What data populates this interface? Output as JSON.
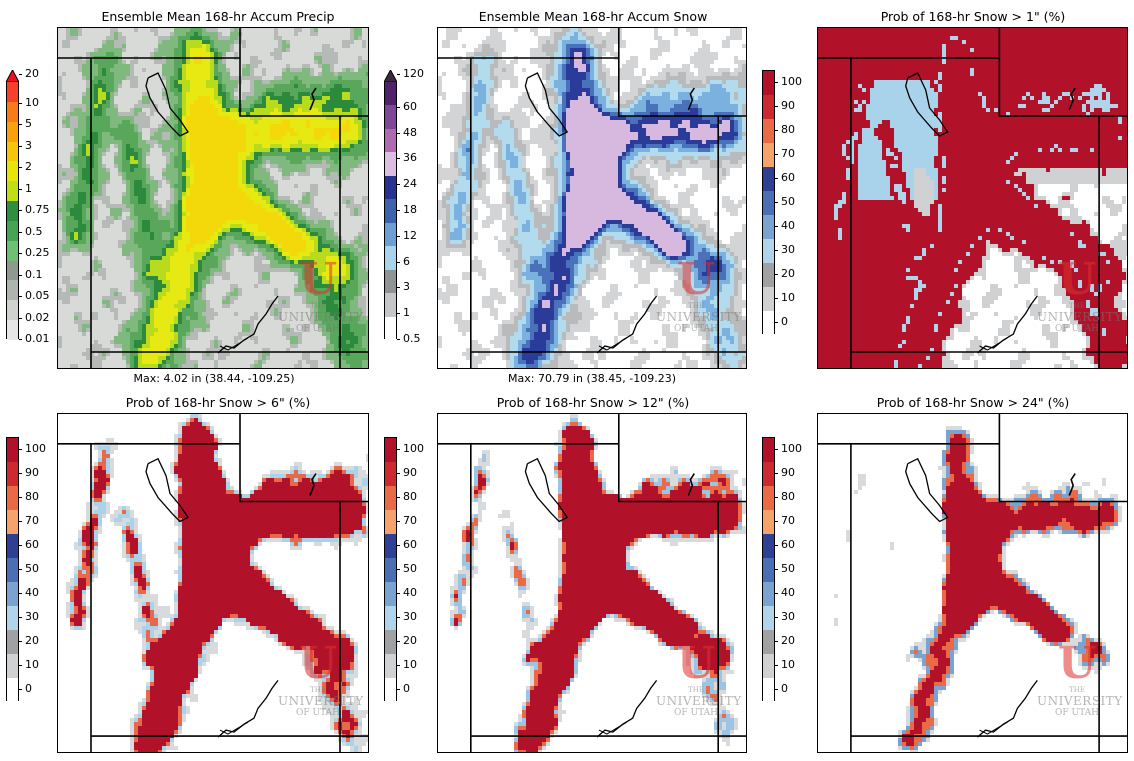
{
  "panels": [
    {
      "id": "mean-precip",
      "title": "Ensemble Mean 168-hr Accum Precip",
      "max_label": "Max: 4.02 in (38.44, -109.25)",
      "colorbar": {
        "ticks": [
          "20",
          "10",
          "5",
          "3",
          "2",
          "1",
          "0.75",
          "0.5",
          "0.25",
          "0.1",
          "0.05",
          "0.02",
          "0.01"
        ],
        "colors": [
          "#f6402a",
          "#f77b17",
          "#f8a10e",
          "#f5c50a",
          "#e7e40a",
          "#bfde16",
          "#2f8f40",
          "#44a552",
          "#6fc070",
          "#8f9990",
          "#aeb4ae",
          "#cfd2cf",
          "#e5e6e5"
        ],
        "extend_top": true
      },
      "palette": "precip"
    },
    {
      "id": "mean-snow",
      "title": "Ensemble Mean 168-hr Accum Snow",
      "max_label": "Max: 70.79 in (38.45, -109.23)",
      "colorbar": {
        "ticks": [
          "120",
          "60",
          "48",
          "36",
          "24",
          "18",
          "12",
          "6",
          "3",
          "1",
          "0.5"
        ],
        "colors": [
          "#50226a",
          "#7d4896",
          "#b06ab0",
          "#dcbfe0",
          "#27318f",
          "#3e63ad",
          "#6d9ed4",
          "#a9d3ea",
          "#8f9394",
          "#c4c6c7",
          "#ffffff"
        ],
        "extend_top": true
      },
      "palette": "snow"
    },
    {
      "id": "prob-1",
      "title": "Prob of 168-hr Snow > 1\" (%)",
      "max_label": "",
      "colorbar": {
        "ticks": [
          "100",
          "90",
          "80",
          "70",
          "60",
          "50",
          "40",
          "30",
          "20",
          "10",
          "0"
        ],
        "colors": [
          "#b1122a",
          "#cd2a2f",
          "#ea6a48",
          "#f5a36a",
          "#2f3f93",
          "#4a6fb2",
          "#7aa3cf",
          "#b0d5ea",
          "#9fa1a2",
          "#d0d1d2",
          "#ffffff"
        ],
        "extend_top": false
      },
      "palette": "prob-high"
    },
    {
      "id": "prob-6",
      "title": "Prob of 168-hr Snow > 6\" (%)",
      "max_label": "",
      "colorbar": {
        "ticks": [
          "100",
          "90",
          "80",
          "70",
          "60",
          "50",
          "40",
          "30",
          "20",
          "10",
          "0"
        ],
        "colors": [
          "#b1122a",
          "#cd2a2f",
          "#ea6a48",
          "#f5a36a",
          "#2f3f93",
          "#4a6fb2",
          "#7aa3cf",
          "#b0d5ea",
          "#9fa1a2",
          "#d0d1d2",
          "#ffffff"
        ],
        "extend_top": false
      },
      "palette": "prob-mid"
    },
    {
      "id": "prob-12",
      "title": "Prob of 168-hr Snow > 12\" (%)",
      "max_label": "",
      "colorbar": {
        "ticks": [
          "100",
          "90",
          "80",
          "70",
          "60",
          "50",
          "40",
          "30",
          "20",
          "10",
          "0"
        ],
        "colors": [
          "#b1122a",
          "#cd2a2f",
          "#ea6a48",
          "#f5a36a",
          "#2f3f93",
          "#4a6fb2",
          "#7aa3cf",
          "#b0d5ea",
          "#9fa1a2",
          "#d0d1d2",
          "#ffffff"
        ],
        "extend_top": false
      },
      "palette": "prob-low"
    },
    {
      "id": "prob-24",
      "title": "Prob of 168-hr Snow > 24\" (%)",
      "max_label": "",
      "colorbar": {
        "ticks": [
          "100",
          "90",
          "80",
          "70",
          "60",
          "50",
          "40",
          "30",
          "20",
          "10",
          "0"
        ],
        "colors": [
          "#b1122a",
          "#cd2a2f",
          "#ea6a48",
          "#f5a36a",
          "#2f3f93",
          "#4a6fb2",
          "#7aa3cf",
          "#b0d5ea",
          "#9fa1a2",
          "#d0d1d2",
          "#ffffff"
        ],
        "extend_top": false
      },
      "palette": "prob-vlow"
    }
  ],
  "watermark": {
    "line1": "THE",
    "line2": "UNIVERSITY",
    "line3": "OF UTAH",
    "logo": "U"
  }
}
